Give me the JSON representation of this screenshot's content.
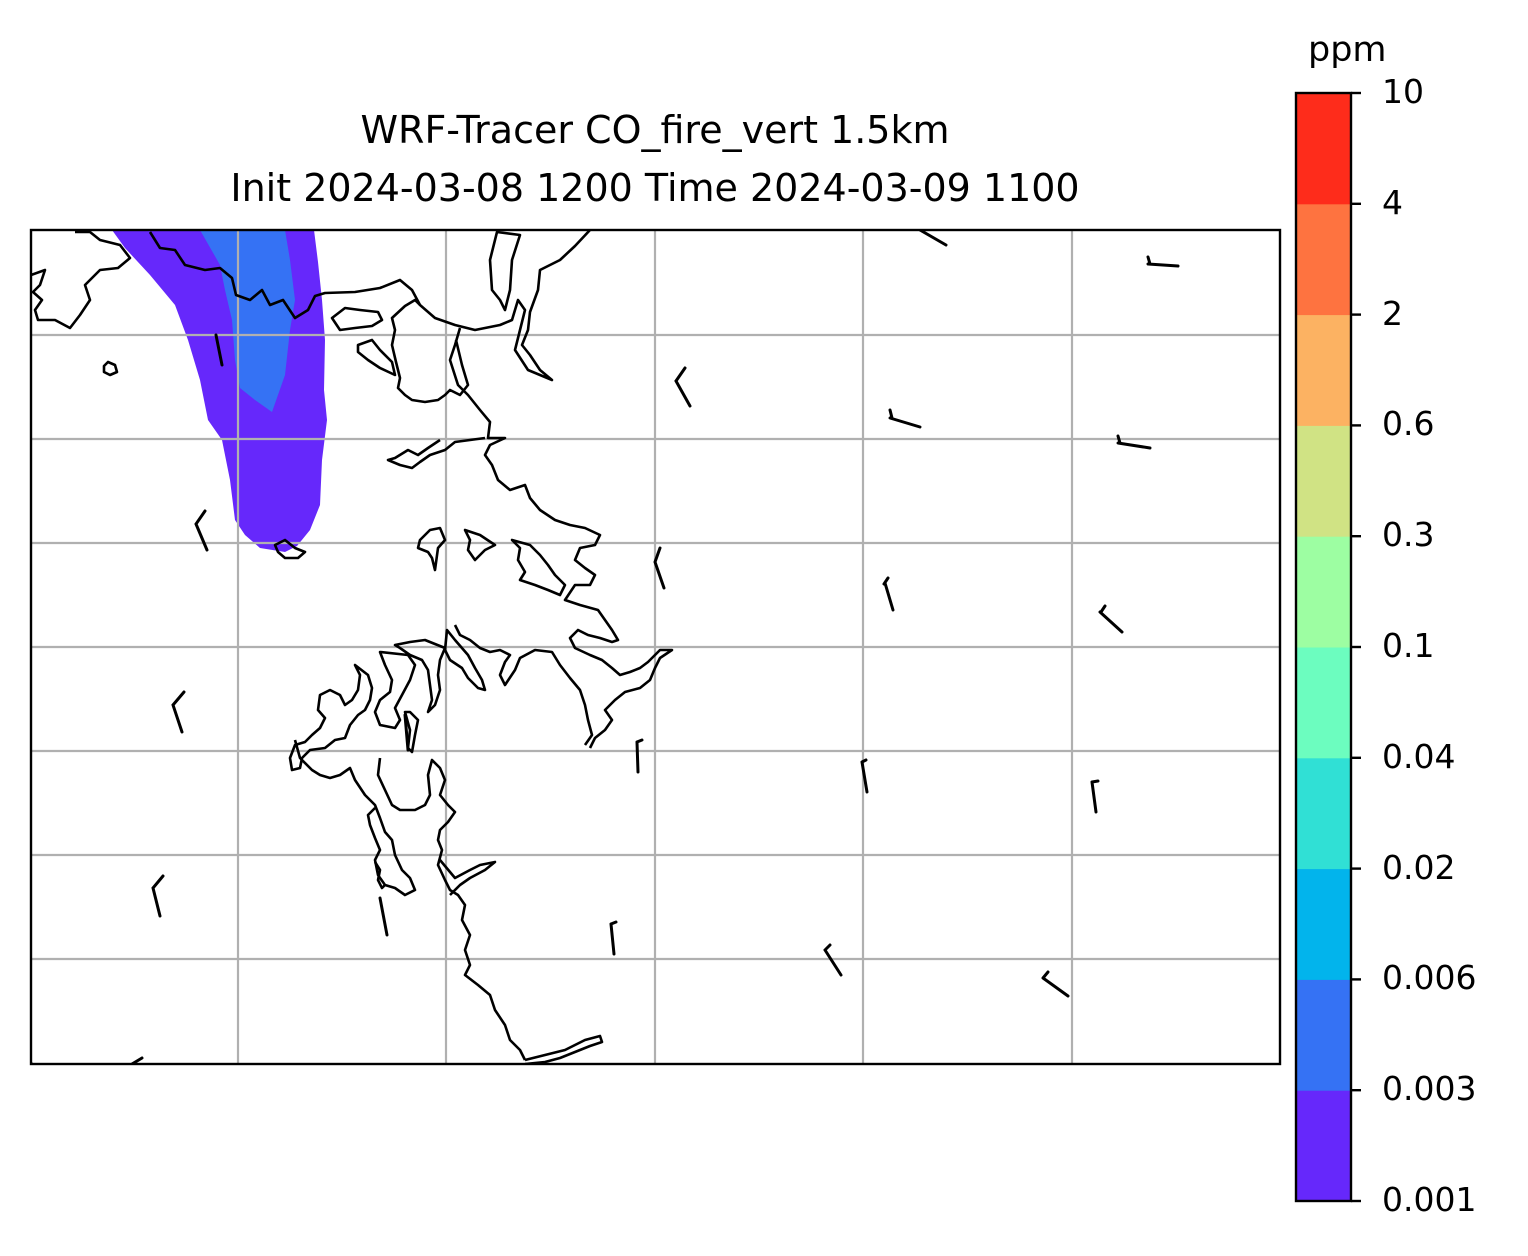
{
  "title": {
    "line1": "WRF-Tracer CO_fire_vert 1.5km",
    "line2": "Init 2024-03-08 1200 Time 2024-03-09 1100"
  },
  "colorbar": {
    "unit": "ppm",
    "ticks": [
      "0.001",
      "0.003",
      "0.006",
      "0.02",
      "0.04",
      "0.1",
      "0.3",
      "0.6",
      "2",
      "4",
      "10"
    ],
    "colors": [
      "#6628fb",
      "#3572f4",
      "#02b4ec",
      "#30e0d5",
      "#6cfdbf",
      "#9dfea2",
      "#d0e384",
      "#fcb262",
      "#fe7340",
      "#fe2c1b"
    ]
  },
  "map": {
    "plume_colors": {
      "outer": "#6628fb",
      "inner": "#3572f4"
    },
    "gridline_color": "#b0b0b0",
    "coastline_color": "#000000"
  }
}
